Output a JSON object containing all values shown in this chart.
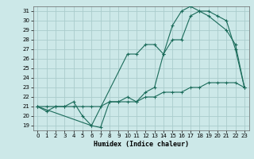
{
  "xlabel": "Humidex (Indice chaleur)",
  "bg_color": "#cce8e8",
  "grid_color": "#aacccc",
  "line_color": "#1a6b5a",
  "xlim": [
    -0.5,
    23.5
  ],
  "ylim": [
    18.5,
    31.5
  ],
  "xticks": [
    0,
    1,
    2,
    3,
    4,
    5,
    6,
    7,
    8,
    9,
    10,
    11,
    12,
    13,
    14,
    15,
    16,
    17,
    18,
    19,
    20,
    21,
    22,
    23
  ],
  "yticks": [
    19,
    20,
    21,
    22,
    23,
    24,
    25,
    26,
    27,
    28,
    29,
    30,
    31
  ],
  "line1_x": [
    0,
    1,
    2,
    3,
    4,
    5,
    6,
    7,
    8,
    9,
    10,
    11,
    12,
    13,
    14,
    15,
    16,
    17,
    18,
    19,
    20,
    21,
    22,
    23
  ],
  "line1_y": [
    21.0,
    20.5,
    21.0,
    21.0,
    21.5,
    20.0,
    19.0,
    18.8,
    21.5,
    21.5,
    22.0,
    21.5,
    22.5,
    23.0,
    26.5,
    28.0,
    28.0,
    30.5,
    31.0,
    31.0,
    30.5,
    30.0,
    27.0,
    23.0
  ],
  "line2_x": [
    0,
    1,
    2,
    3,
    4,
    5,
    6,
    7,
    8,
    9,
    10,
    11,
    12,
    13,
    14,
    15,
    16,
    17,
    18,
    19,
    20,
    21,
    22,
    23
  ],
  "line2_y": [
    21.0,
    21.0,
    21.0,
    21.0,
    21.0,
    21.0,
    21.0,
    21.0,
    21.5,
    21.5,
    21.5,
    21.5,
    22.0,
    22.0,
    22.5,
    22.5,
    22.5,
    23.0,
    23.0,
    23.5,
    23.5,
    23.5,
    23.5,
    23.0
  ],
  "line3_x": [
    0,
    6,
    10,
    11,
    12,
    13,
    14,
    15,
    16,
    17,
    18,
    19,
    21,
    22,
    23
  ],
  "line3_y": [
    21.0,
    19.0,
    26.5,
    26.5,
    27.5,
    27.5,
    26.5,
    29.5,
    31.0,
    31.5,
    31.0,
    30.5,
    29.0,
    27.5,
    23.0
  ],
  "xlabel_fontsize": 6,
  "tick_fontsize": 5
}
